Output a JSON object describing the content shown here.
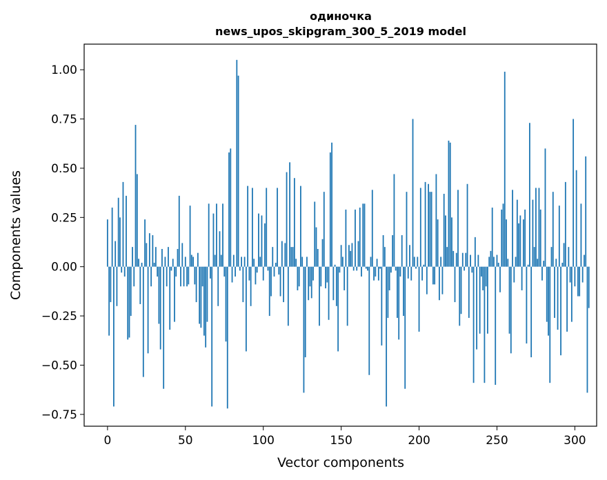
{
  "chart_data": {
    "type": "bar",
    "title": "одиночка",
    "subtitle": "news_upos_skipgram_300_5_2019 model",
    "xlabel": "Vector components",
    "ylabel": "Components values",
    "xlim": [
      -15,
      314
    ],
    "ylim": [
      -0.81,
      1.13
    ],
    "x_ticks": [
      0,
      50,
      100,
      150,
      200,
      250,
      300
    ],
    "x_tick_labels": [
      "0",
      "50",
      "100",
      "150",
      "200",
      "250",
      "300"
    ],
    "y_ticks": [
      -0.75,
      -0.5,
      -0.25,
      0.0,
      0.25,
      0.5,
      0.75,
      1.0
    ],
    "y_tick_labels": [
      "−0.75",
      "−0.50",
      "−0.25",
      "0.00",
      "0.25",
      "0.50",
      "0.75",
      "1.00"
    ],
    "grid": false,
    "bar_color": "#1f77b4",
    "values": [
      0.24,
      -0.35,
      -0.18,
      0.3,
      -0.71,
      0.13,
      -0.2,
      0.35,
      0.25,
      -0.03,
      0.43,
      -0.05,
      0.36,
      -0.37,
      -0.36,
      -0.25,
      0.1,
      -0.1,
      0.72,
      0.47,
      0.04,
      -0.19,
      0.02,
      -0.56,
      0.24,
      0.12,
      -0.44,
      0.17,
      -0.1,
      0.16,
      0.02,
      0.1,
      -0.05,
      -0.29,
      -0.42,
      0.09,
      -0.62,
      0.05,
      -0.1,
      0.1,
      -0.32,
      -0.02,
      0.04,
      -0.28,
      -0.05,
      0.09,
      0.36,
      -0.1,
      0.12,
      -0.1,
      0.05,
      -0.1,
      -0.09,
      0.31,
      0.06,
      0.05,
      -0.09,
      -0.18,
      0.07,
      -0.29,
      -0.31,
      -0.1,
      -0.35,
      -0.41,
      -0.28,
      0.32,
      -0.06,
      -0.71,
      0.27,
      0.06,
      0.32,
      -0.2,
      0.18,
      0.06,
      0.32,
      -0.05,
      -0.38,
      -0.72,
      0.58,
      0.6,
      -0.08,
      0.06,
      -0.05,
      1.05,
      0.97,
      -0.02,
      0.05,
      -0.18,
      0.05,
      -0.43,
      0.41,
      -0.07,
      -0.2,
      0.4,
      0.04,
      -0.09,
      -0.03,
      0.27,
      0.05,
      0.26,
      -0.07,
      0.22,
      0.4,
      -0.02,
      -0.25,
      -0.15,
      0.1,
      -0.05,
      0.02,
      0.4,
      -0.04,
      -0.15,
      0.13,
      -0.18,
      0.12,
      0.48,
      -0.3,
      0.53,
      0.1,
      0.1,
      0.45,
      0.04,
      -0.12,
      -0.1,
      0.41,
      0.05,
      -0.64,
      -0.46,
      0.05,
      -0.17,
      -0.1,
      -0.16,
      -0.07,
      0.33,
      0.2,
      0.09,
      -0.3,
      -0.1,
      0.14,
      0.38,
      -0.11,
      -0.08,
      -0.27,
      0.58,
      0.63,
      -0.17,
      0.01,
      -0.2,
      -0.43,
      -0.03,
      0.11,
      0.05,
      -0.12,
      0.29,
      -0.3,
      0.11,
      0.08,
      0.12,
      -0.02,
      0.29,
      -0.02,
      0.13,
      0.3,
      -0.05,
      0.32,
      0.32,
      -0.01,
      -0.02,
      -0.55,
      0.05,
      0.39,
      -0.07,
      -0.05,
      0.04,
      -0.07,
      -0.01,
      -0.4,
      0.16,
      0.1,
      -0.71,
      -0.26,
      -0.12,
      -0.03,
      0.16,
      0.47,
      -0.02,
      -0.26,
      -0.37,
      -0.05,
      0.16,
      -0.25,
      -0.62,
      0.38,
      -0.06,
      0.11,
      -0.07,
      0.75,
      0.05,
      -0.01,
      0.05,
      -0.33,
      0.4,
      -0.07,
      0.01,
      0.43,
      -0.14,
      0.42,
      0.38,
      0.38,
      -0.09,
      -0.09,
      0.47,
      0.24,
      -0.17,
      0.05,
      -0.14,
      0.37,
      0.26,
      0.1,
      0.64,
      0.63,
      0.25,
      0.08,
      -0.18,
      0.07,
      0.39,
      -0.3,
      -0.24,
      0.07,
      -0.02,
      0.07,
      0.42,
      -0.26,
      0.06,
      -0.03,
      -0.59,
      0.15,
      -0.42,
      0.06,
      -0.34,
      -0.05,
      -0.12,
      -0.59,
      -0.1,
      -0.34,
      0.05,
      0.08,
      0.3,
      0.05,
      -0.6,
      0.06,
      0.02,
      -0.13,
      0.29,
      0.32,
      0.99,
      0.24,
      0.04,
      -0.34,
      -0.44,
      0.39,
      -0.08,
      0.05,
      0.34,
      0.22,
      0.26,
      -0.12,
      0.24,
      0.29,
      -0.39,
      0.01,
      0.73,
      -0.46,
      0.34,
      0.1,
      0.4,
      0.04,
      0.4,
      0.29,
      -0.07,
      0.03,
      0.6,
      -0.28,
      -0.35,
      -0.59,
      0.1,
      0.38,
      -0.26,
      0.04,
      -0.32,
      0.31,
      -0.45,
      0.02,
      0.12,
      0.43,
      -0.33,
      0.1,
      -0.08,
      -0.28,
      0.75,
      -0.1,
      0.49,
      -0.15,
      -0.15,
      0.32,
      -0.08,
      0.06,
      0.56,
      -0.64,
      -0.21
    ]
  }
}
